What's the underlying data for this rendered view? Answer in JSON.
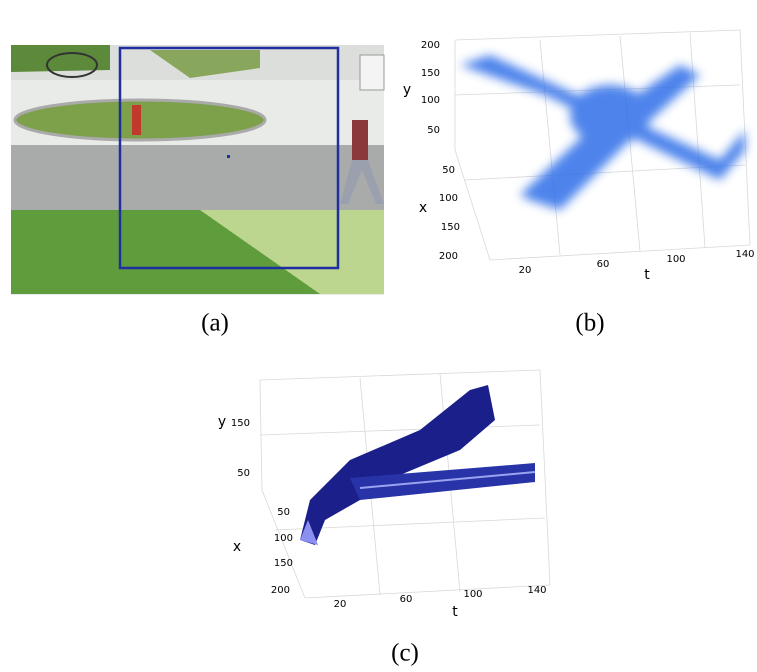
{
  "panels": [
    {
      "caption": "(a)"
    },
    {
      "caption": "(b)",
      "axes": {
        "y_label": "y",
        "x_label": "x",
        "t_label": "t",
        "y_ticks": [
          "200",
          "150",
          "100",
          "50"
        ],
        "x_ticks": [
          "50",
          "100",
          "150",
          "200"
        ],
        "t_ticks": [
          "20",
          "60",
          "100",
          "140"
        ]
      }
    },
    {
      "caption": "(c)",
      "axes": {
        "y_label": "y",
        "x_label": "x",
        "t_label": "t",
        "y_ticks": [
          "150",
          "50"
        ],
        "x_ticks": [
          "50",
          "100",
          "150",
          "200"
        ],
        "t_ticks": [
          "20",
          "60",
          "100",
          "140"
        ]
      }
    }
  ]
}
